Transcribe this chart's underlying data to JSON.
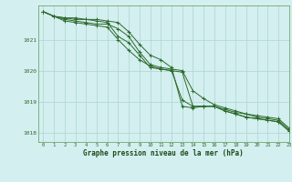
{
  "xlabel": "Graphe pression niveau de la mer (hPa)",
  "background_color": "#d4efef",
  "grid_color": "#aad4d4",
  "line_color": "#2d6a2d",
  "xlim": [
    -0.5,
    23
  ],
  "ylim": [
    1017.7,
    1022.1
  ],
  "yticks": [
    1018,
    1019,
    1020,
    1021
  ],
  "xticks": [
    0,
    1,
    2,
    3,
    4,
    5,
    6,
    7,
    8,
    9,
    10,
    11,
    12,
    13,
    14,
    15,
    16,
    17,
    18,
    19,
    20,
    21,
    22,
    23
  ],
  "series": [
    [
      1021.9,
      1021.75,
      1021.7,
      1021.7,
      1021.65,
      1021.65,
      1021.6,
      1021.55,
      1021.25,
      1020.85,
      1020.5,
      1020.35,
      1020.1,
      1018.85,
      1018.8,
      1018.85,
      1018.85,
      1018.75,
      1018.65,
      1018.6,
      1018.55,
      1018.5,
      1018.45,
      1018.15
    ],
    [
      1021.9,
      1021.75,
      1021.6,
      1021.55,
      1021.5,
      1021.45,
      1021.4,
      1021.0,
      1020.65,
      1020.35,
      1020.15,
      1020.05,
      1020.0,
      1019.95,
      1018.85,
      1018.85,
      1018.85,
      1018.7,
      1018.6,
      1018.5,
      1018.45,
      1018.4,
      1018.35,
      1018.05
    ],
    [
      1021.9,
      1021.75,
      1021.65,
      1021.6,
      1021.55,
      1021.5,
      1021.5,
      1021.35,
      1021.1,
      1020.6,
      1020.2,
      1020.1,
      1020.05,
      1020.0,
      1019.35,
      1019.1,
      1018.9,
      1018.8,
      1018.7,
      1018.6,
      1018.5,
      1018.45,
      1018.4,
      1018.1
    ],
    [
      1021.9,
      1021.75,
      1021.7,
      1021.65,
      1021.65,
      1021.6,
      1021.55,
      1021.1,
      1020.9,
      1020.5,
      1020.1,
      1020.05,
      1020.0,
      1019.05,
      1018.85,
      1018.85,
      1018.85,
      1018.7,
      1018.6,
      1018.5,
      1018.45,
      1018.4,
      1018.35,
      1018.05
    ]
  ]
}
